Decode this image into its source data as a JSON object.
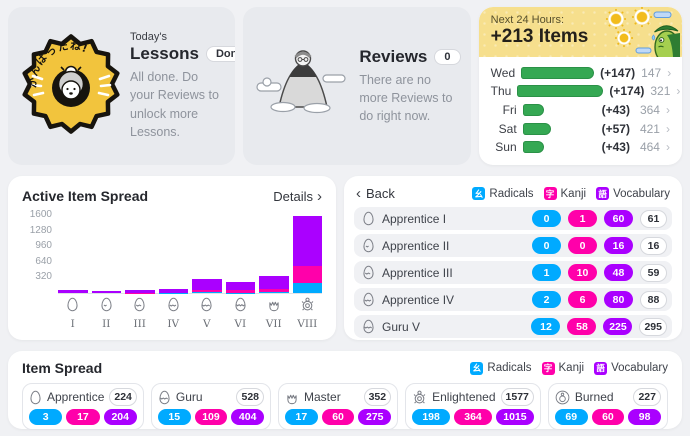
{
  "colors": {
    "radical": "#00aaff",
    "kanji": "#ff00aa",
    "vocabulary": "#aa00ff",
    "forecast_bar": "#35a853",
    "header_yellow": "#f6df8d"
  },
  "legend": {
    "items": [
      {
        "label": "Radicals",
        "glyph": "幺",
        "color": "#00aaff"
      },
      {
        "label": "Kanji",
        "glyph": "字",
        "color": "#ff00aa"
      },
      {
        "label": "Vocabulary",
        "glyph": "語",
        "color": "#aa00ff"
      }
    ]
  },
  "lessons_card": {
    "eyebrow": "Today's",
    "title": "Lessons",
    "badge": "Done!",
    "body": "All done. Do your Reviews to unlock more Lessons.",
    "seal_text": "がんばったね!"
  },
  "reviews_card": {
    "title": "Reviews",
    "badge": "0",
    "body": "There are no more Reviews to do right now."
  },
  "forecast_card": {
    "header_label": "Next 24 Hours:",
    "header_value": "+213 Items",
    "rows": [
      {
        "day": "Wed",
        "delta": "(+147)",
        "total": "147",
        "value": 147
      },
      {
        "day": "Thu",
        "delta": "(+174)",
        "total": "321",
        "value": 174
      },
      {
        "day": "Fri",
        "delta": "(+43)",
        "total": "364",
        "value": 43
      },
      {
        "day": "Sat",
        "delta": "(+57)",
        "total": "421",
        "value": 57
      },
      {
        "day": "Sun",
        "delta": "(+43)",
        "total": "464",
        "value": 43
      }
    ]
  },
  "active_item_spread": {
    "title": "Active Item Spread",
    "details_label": "Details",
    "details_chevron": "›"
  },
  "chart_data": {
    "type": "bar",
    "stacked": true,
    "title": "Active Item Spread",
    "categories": [
      "I",
      "II",
      "III",
      "IV",
      "V",
      "VI",
      "VII",
      "VIII"
    ],
    "category_icons": [
      "egg1",
      "egg2",
      "egg3",
      "egg4",
      "egg5",
      "egg6",
      "master",
      "turtle"
    ],
    "series": [
      {
        "name": "Radicals",
        "color": "#00aaff",
        "values": [
          0,
          0,
          1,
          2,
          12,
          3,
          17,
          198
        ]
      },
      {
        "name": "Kanji",
        "color": "#ff00aa",
        "values": [
          1,
          0,
          10,
          6,
          58,
          51,
          60,
          364
        ]
      },
      {
        "name": "Vocabulary",
        "color": "#aa00ff",
        "values": [
          60,
          16,
          48,
          80,
          225,
          179,
          275,
          1015
        ]
      }
    ],
    "totals": [
      61,
      16,
      59,
      88,
      295,
      233,
      352,
      1577
    ],
    "yticks": [
      320,
      640,
      960,
      1280,
      1600
    ],
    "ylim": [
      0,
      1640
    ],
    "grid": false,
    "legend_position": "none"
  },
  "stage_panel": {
    "back_label": "Back",
    "back_chevron": "‹",
    "rows": [
      {
        "name": "Apprentice I",
        "icon": "egg1",
        "radicals": 0,
        "kanji": 1,
        "vocabulary": 60,
        "total": 61
      },
      {
        "name": "Apprentice II",
        "icon": "egg2",
        "radicals": 0,
        "kanji": 0,
        "vocabulary": 16,
        "total": 16
      },
      {
        "name": "Apprentice III",
        "icon": "egg3",
        "radicals": 1,
        "kanji": 10,
        "vocabulary": 48,
        "total": 59
      },
      {
        "name": "Apprentice IV",
        "icon": "egg4",
        "radicals": 2,
        "kanji": 6,
        "vocabulary": 80,
        "total": 88
      },
      {
        "name": "Guru V",
        "icon": "egg5",
        "radicals": 12,
        "kanji": 58,
        "vocabulary": 225,
        "total": 295
      }
    ]
  },
  "item_spread": {
    "title": "Item Spread",
    "cards": [
      {
        "name": "Apprentice",
        "icon": "egg1",
        "total": 224,
        "radicals": 3,
        "kanji": 17,
        "vocabulary": 204
      },
      {
        "name": "Guru",
        "icon": "egg5",
        "total": 528,
        "radicals": 15,
        "kanji": 109,
        "vocabulary": 404
      },
      {
        "name": "Master",
        "icon": "master",
        "total": 352,
        "radicals": 17,
        "kanji": 60,
        "vocabulary": 275
      },
      {
        "name": "Enlightened",
        "icon": "turtle",
        "total": 1577,
        "radicals": 198,
        "kanji": 364,
        "vocabulary": 1015
      },
      {
        "name": "Burned",
        "icon": "burned",
        "total": 227,
        "radicals": 69,
        "kanji": 60,
        "vocabulary": 98
      }
    ]
  }
}
